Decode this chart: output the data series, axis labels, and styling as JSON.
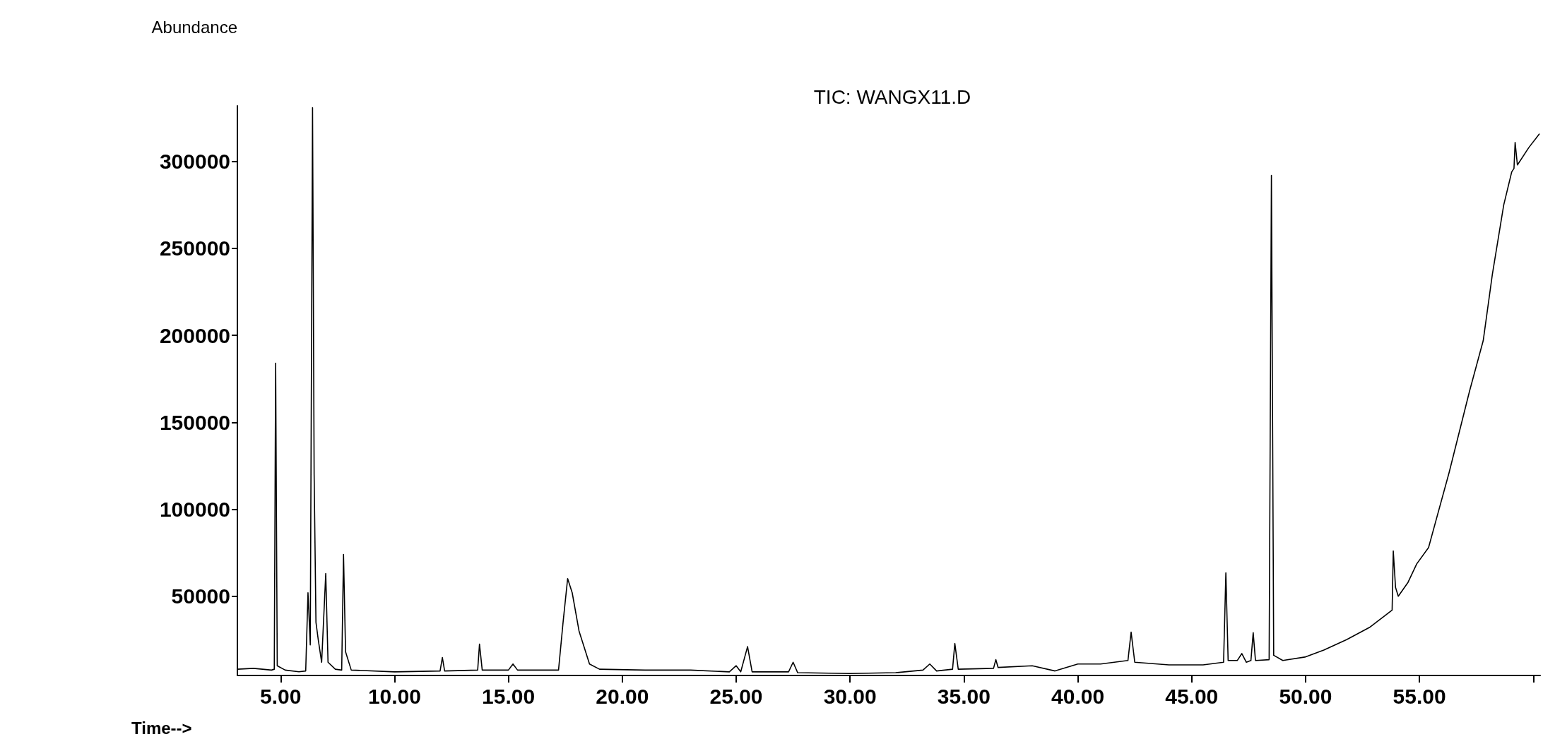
{
  "chart_data": {
    "type": "line",
    "title": "TIC: WANGX11.D",
    "xlabel": "Time-->",
    "ylabel": "Abundance",
    "xlim": [
      3.1,
      60.3
    ],
    "ylim": [
      4400,
      332000
    ],
    "xticks": [
      {
        "value": 5,
        "label": "5.00"
      },
      {
        "value": 10,
        "label": "10.00"
      },
      {
        "value": 15,
        "label": "15.00"
      },
      {
        "value": 20,
        "label": "20.00"
      },
      {
        "value": 25,
        "label": "25.00"
      },
      {
        "value": 30,
        "label": "30.00"
      },
      {
        "value": 35,
        "label": "35.00"
      },
      {
        "value": 40,
        "label": "40.00"
      },
      {
        "value": 45,
        "label": "45.00"
      },
      {
        "value": 50,
        "label": "50.00"
      },
      {
        "value": 55,
        "label": "55.00"
      },
      {
        "value": 60,
        "label": null
      }
    ],
    "yticks": [
      50000,
      100000,
      150000,
      200000,
      250000,
      300000
    ],
    "grid": false,
    "marker": "none",
    "line_style": "solid",
    "series": [
      {
        "color": "#000000",
        "x": [
          3.1,
          3.8,
          4.6,
          4.72,
          4.78,
          4.85,
          5.2,
          5.8,
          6.1,
          6.2,
          6.3,
          6.4,
          6.47,
          6.55,
          6.65,
          6.8,
          6.98,
          7.08,
          7.4,
          7.68,
          7.76,
          7.85,
          8.1,
          10.0,
          12.0,
          12.1,
          12.2,
          13.65,
          13.73,
          13.85,
          15.0,
          15.2,
          15.4,
          17.2,
          17.4,
          17.6,
          17.8,
          18.1,
          18.56,
          19.0,
          21.0,
          23.0,
          24.7,
          25.0,
          25.2,
          25.5,
          25.7,
          27.3,
          27.5,
          27.7,
          30.0,
          32.0,
          33.2,
          33.5,
          33.8,
          34.5,
          34.6,
          34.75,
          36.3,
          36.4,
          36.5,
          38.0,
          39.0,
          40.0,
          41.0,
          42.2,
          42.34,
          42.5,
          44.0,
          45.5,
          46.4,
          46.5,
          46.6,
          47.0,
          47.2,
          47.4,
          47.6,
          47.7,
          47.8,
          48.4,
          48.5,
          48.6,
          49.0,
          49.97,
          50.8,
          51.8,
          52.8,
          53.6,
          53.8,
          53.85,
          53.95,
          54.07,
          54.5,
          54.88,
          55.4,
          56.3,
          57.2,
          57.8,
          58.2,
          58.7,
          59.05,
          59.15,
          59.2,
          59.3,
          59.8,
          60.27
        ],
        "values": [
          8000,
          8500,
          7500,
          8000,
          184000,
          10000,
          7500,
          6500,
          7000,
          52000,
          22000,
          331000,
          120000,
          35000,
          25000,
          12000,
          63000,
          12000,
          8000,
          7500,
          74000,
          18000,
          7500,
          6500,
          7000,
          14700,
          7000,
          7500,
          22400,
          7500,
          7500,
          11000,
          7500,
          7500,
          35000,
          60100,
          52000,
          30000,
          11000,
          8000,
          7500,
          7500,
          6500,
          10000,
          6500,
          21000,
          6500,
          6500,
          12000,
          6000,
          5500,
          6000,
          7500,
          11000,
          7000,
          8000,
          22800,
          8000,
          8500,
          13500,
          9000,
          10000,
          7000,
          11000,
          11000,
          13000,
          29300,
          12000,
          10500,
          10500,
          12000,
          63400,
          13000,
          13000,
          17000,
          12000,
          13000,
          29000,
          13000,
          13500,
          292000,
          16000,
          13000,
          15000,
          19000,
          25000,
          32000,
          40000,
          42000,
          76000,
          55000,
          50000,
          58000,
          68600,
          78000,
          121000,
          168000,
          197000,
          235000,
          275000,
          294000,
          296000,
          311000,
          298000,
          308000,
          316000
        ]
      }
    ]
  }
}
